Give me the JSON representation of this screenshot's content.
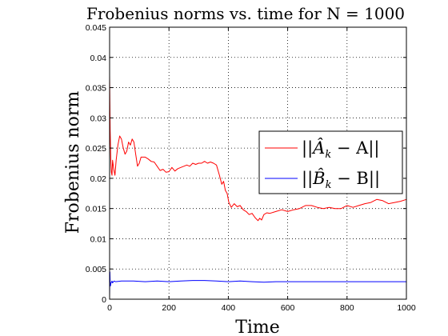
{
  "chart_data": {
    "type": "line",
    "title": "Frobenius norms vs. time for N = 1000",
    "xlabel": "Time",
    "ylabel": "Frobenius norm",
    "xlim": [
      0,
      1000
    ],
    "ylim": [
      0,
      0.045
    ],
    "grid": true,
    "xticks": [
      0,
      200,
      400,
      600,
      800,
      1000
    ],
    "xtick_labels": [
      "0",
      "200",
      "400",
      "600",
      "800",
      "1000"
    ],
    "yticks": [
      0,
      0.005,
      0.01,
      0.015,
      0.02,
      0.025,
      0.03,
      0.035,
      0.04,
      0.045
    ],
    "ytick_labels": [
      "0",
      "0.005",
      "0.01",
      "0.015",
      "0.02",
      "0.025",
      "0.03",
      "0.035",
      "0.04",
      "0.045"
    ],
    "legend_position": "center-right",
    "series": [
      {
        "name": "||Â_k − A||",
        "legend": {
          "pre": "||",
          "hat": "A",
          "sub": "k",
          "post": " − A||"
        },
        "color": "#ff0000",
        "x": [
          0,
          2,
          4,
          6,
          8,
          10,
          14,
          18,
          22,
          28,
          34,
          40,
          46,
          52,
          58,
          64,
          70,
          76,
          82,
          88,
          94,
          100,
          106,
          112,
          120,
          130,
          140,
          150,
          160,
          170,
          180,
          190,
          200,
          210,
          220,
          230,
          240,
          250,
          260,
          270,
          280,
          290,
          300,
          310,
          320,
          330,
          340,
          350,
          360,
          370,
          378,
          384,
          390,
          396,
          402,
          410,
          420,
          430,
          440,
          450,
          460,
          470,
          480,
          490,
          500,
          506,
          512,
          520,
          530,
          540,
          560,
          580,
          600,
          620,
          640,
          660,
          680,
          700,
          720,
          740,
          760,
          780,
          800,
          820,
          840,
          860,
          880,
          900,
          920,
          940,
          960,
          980,
          1000
        ],
        "y": [
          0.037,
          0.028,
          0.023,
          0.021,
          0.0205,
          0.023,
          0.0215,
          0.0205,
          0.023,
          0.0255,
          0.027,
          0.0265,
          0.025,
          0.024,
          0.0245,
          0.026,
          0.0255,
          0.0265,
          0.026,
          0.024,
          0.022,
          0.0225,
          0.0235,
          0.0235,
          0.0235,
          0.0232,
          0.0228,
          0.0227,
          0.022,
          0.0213,
          0.0215,
          0.021,
          0.0211,
          0.0218,
          0.0212,
          0.0216,
          0.0218,
          0.022,
          0.0222,
          0.022,
          0.0225,
          0.0223,
          0.0225,
          0.0225,
          0.0228,
          0.0225,
          0.0227,
          0.0225,
          0.0222,
          0.0205,
          0.019,
          0.0195,
          0.018,
          0.0175,
          0.016,
          0.0152,
          0.0158,
          0.0153,
          0.0155,
          0.0148,
          0.0145,
          0.014,
          0.0142,
          0.0135,
          0.013,
          0.0134,
          0.0131,
          0.014,
          0.0143,
          0.0142,
          0.0145,
          0.0148,
          0.0145,
          0.0148,
          0.015,
          0.0155,
          0.0155,
          0.0152,
          0.015,
          0.0152,
          0.015,
          0.015,
          0.0155,
          0.0152,
          0.0155,
          0.0158,
          0.016,
          0.0165,
          0.0163,
          0.0158,
          0.016,
          0.0162,
          0.0165
        ]
      },
      {
        "name": "||B̂_k − B||",
        "legend": {
          "pre": "||",
          "hat": "B",
          "sub": "k",
          "post": " − B||"
        },
        "color": "#0000ff",
        "x": [
          0,
          1,
          2,
          3,
          4,
          6,
          8,
          10,
          15,
          20,
          40,
          80,
          120,
          160,
          200,
          240,
          280,
          320,
          360,
          400,
          440,
          480,
          520,
          560,
          600,
          640,
          680,
          720,
          760,
          800,
          840,
          880,
          920,
          960,
          1000
        ],
        "y": [
          0.0005,
          0.0045,
          0.0028,
          0.0022,
          0.0026,
          0.0028,
          0.003,
          0.0027,
          0.003,
          0.0029,
          0.003,
          0.003,
          0.0029,
          0.003,
          0.0029,
          0.003,
          0.0031,
          0.0031,
          0.003,
          0.0029,
          0.003,
          0.0029,
          0.0028,
          0.0029,
          0.0029,
          0.0029,
          0.0029,
          0.0029,
          0.0029,
          0.0029,
          0.0029,
          0.0029,
          0.0029,
          0.0029,
          0.0029
        ]
      }
    ]
  }
}
